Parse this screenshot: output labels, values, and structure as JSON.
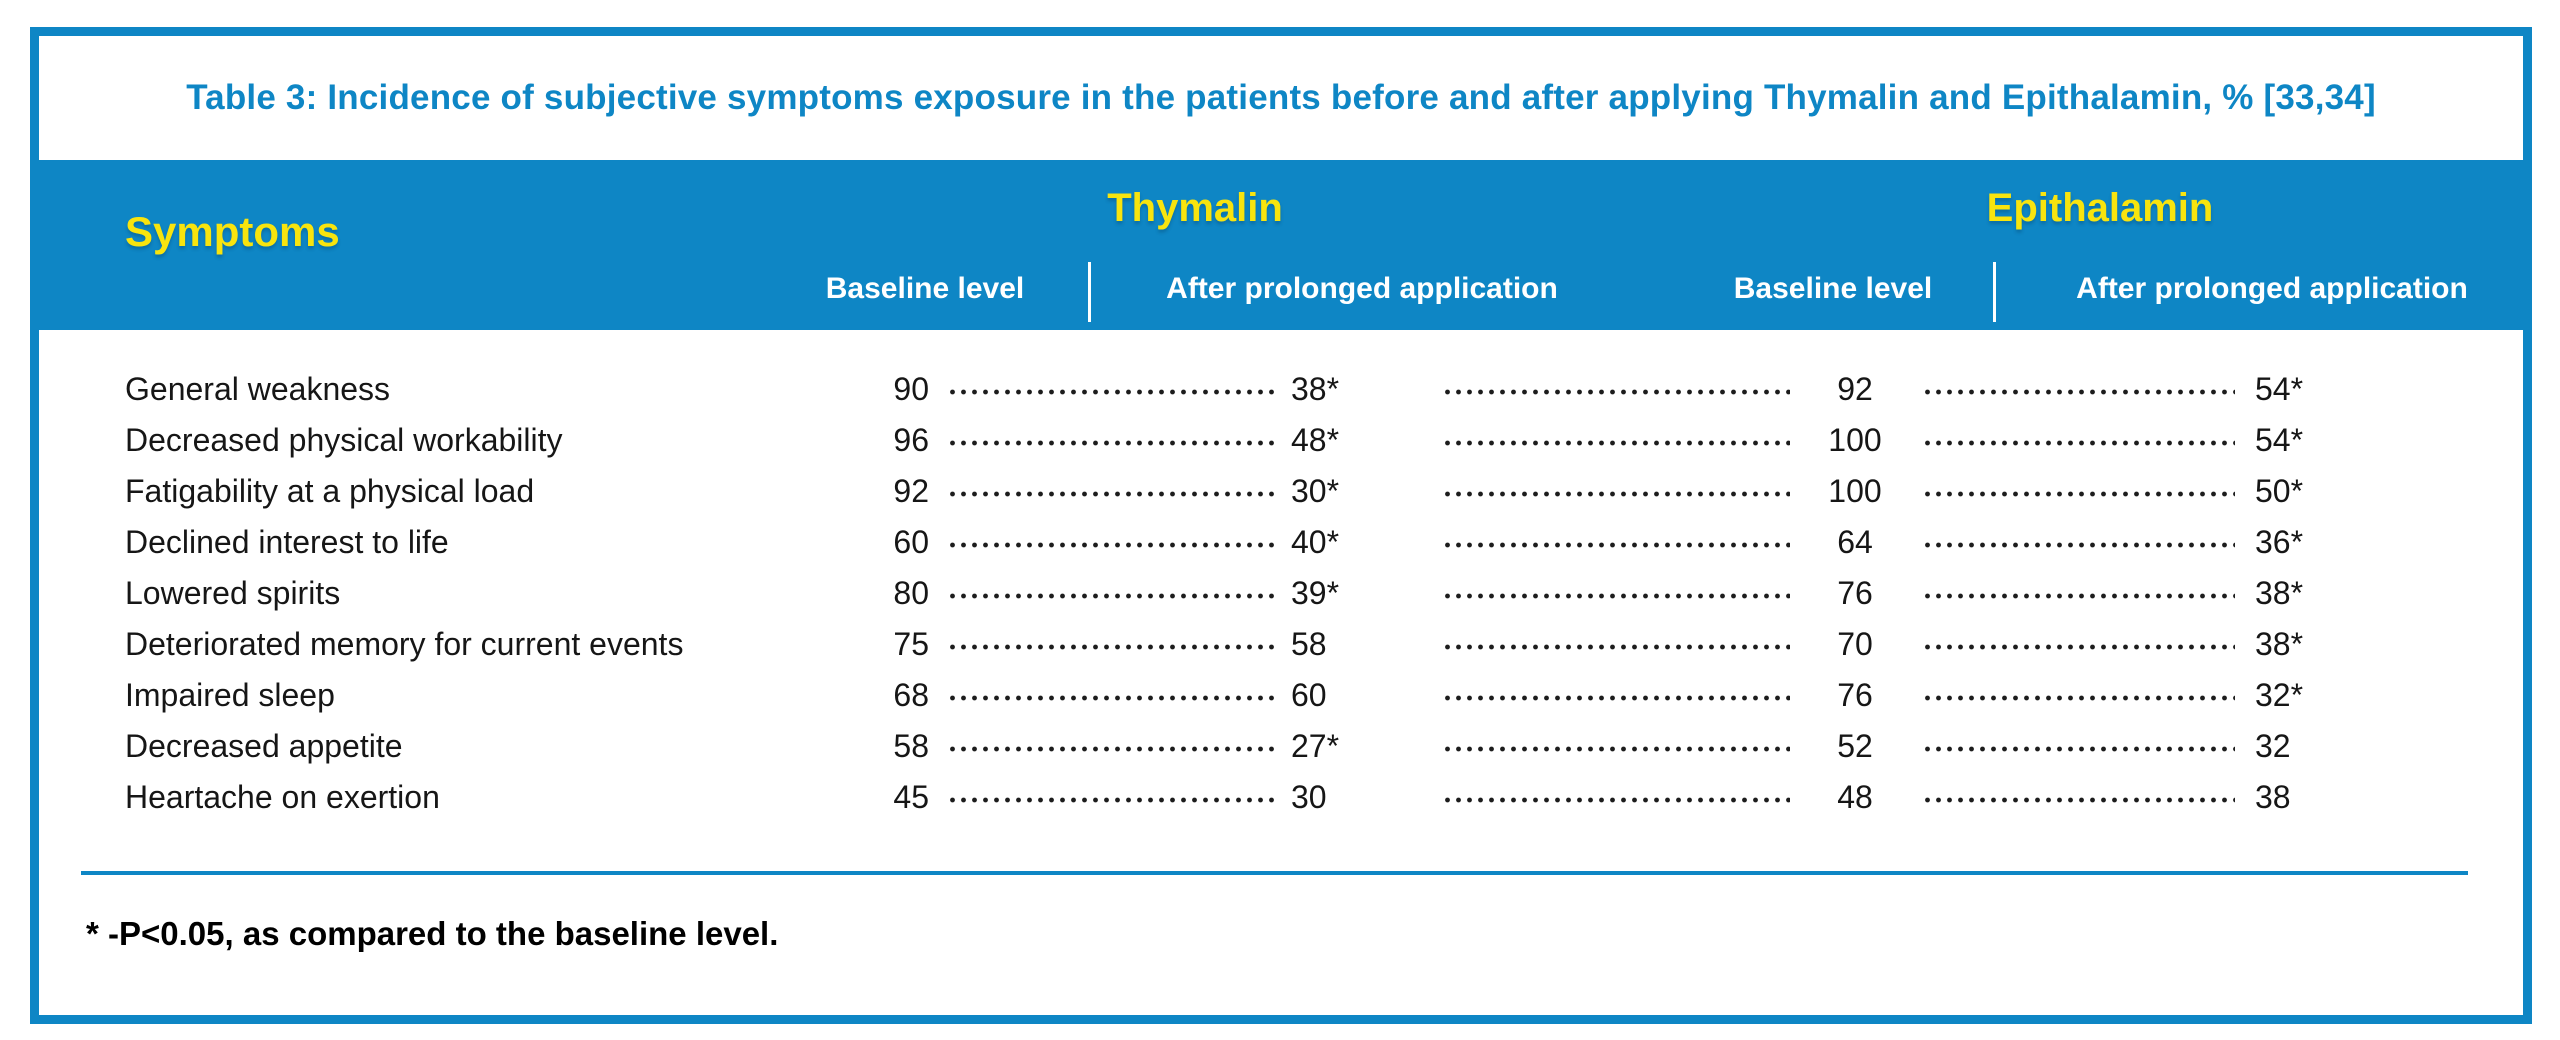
{
  "title": "Table 3: Incidence of subjective symptoms exposure in the patients before and after applying Thymalin and Epithalamin, % [33,34]",
  "header": {
    "symptoms_label": "Symptoms",
    "groups": [
      {
        "name": "Thymalin",
        "sub": [
          "Baseline level",
          "After prolonged application"
        ]
      },
      {
        "name": "Epithalamin",
        "sub": [
          "Baseline level",
          "After prolonged application"
        ]
      }
    ]
  },
  "rows": [
    {
      "symptom": "General weakness",
      "thymalin_baseline": "90",
      "thymalin_after": "38*",
      "epithalamin_baseline": "92",
      "epithalamin_after": "54*"
    },
    {
      "symptom": "Decreased physical workability",
      "thymalin_baseline": "96",
      "thymalin_after": "48*",
      "epithalamin_baseline": "100",
      "epithalamin_after": "54*"
    },
    {
      "symptom": "Fatigability at a physical load",
      "thymalin_baseline": "92",
      "thymalin_after": "30*",
      "epithalamin_baseline": "100",
      "epithalamin_after": "50*"
    },
    {
      "symptom": "Declined interest to life",
      "thymalin_baseline": "60",
      "thymalin_after": "40*",
      "epithalamin_baseline": "64",
      "epithalamin_after": "36*"
    },
    {
      "symptom": "Lowered spirits",
      "thymalin_baseline": "80",
      "thymalin_after": "39*",
      "epithalamin_baseline": "76",
      "epithalamin_after": "38*"
    },
    {
      "symptom": "Deteriorated memory for current events",
      "thymalin_baseline": "75",
      "thymalin_after": "58",
      "epithalamin_baseline": "70",
      "epithalamin_after": "38*"
    },
    {
      "symptom": "Impaired sleep",
      "thymalin_baseline": "68",
      "thymalin_after": "60",
      "epithalamin_baseline": "76",
      "epithalamin_after": "32*"
    },
    {
      "symptom": "Decreased appetite",
      "thymalin_baseline": "58",
      "thymalin_after": "27*",
      "epithalamin_baseline": "52",
      "epithalamin_after": "32"
    },
    {
      "symptom": "Heartache on exertion",
      "thymalin_baseline": "45",
      "thymalin_after": "30",
      "epithalamin_baseline": "48",
      "epithalamin_after": "38"
    }
  ],
  "footnote": "* -P<0.05, as compared to the baseline level.",
  "colors": {
    "accent_blue": "#0e86c5",
    "header_yellow": "#f8e40e",
    "body_text": "#161616",
    "background": "#ffffff"
  }
}
